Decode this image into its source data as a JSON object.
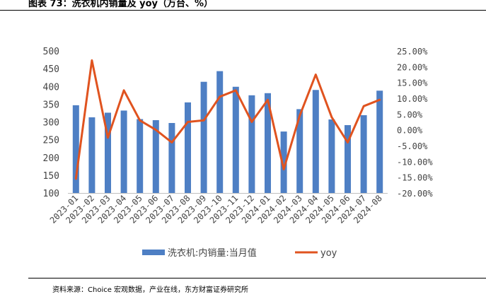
{
  "figure": {
    "title": "图表 73：洗衣机内销量及 yoy（万台、%）",
    "source": "资料来源：Choice 宏观数据，产业在线，东方财富证券研究所"
  },
  "chart_data": {
    "type": "bar",
    "categories": [
      "2023-01",
      "2023-02",
      "2023-03",
      "2023-04",
      "2023-05",
      "2023-06",
      "2023-07",
      "2023-08",
      "2023-09",
      "2023-10",
      "2023-11",
      "2023-12",
      "2024-01",
      "2024-02",
      "2024-03",
      "2024-04",
      "2024-05",
      "2024-06",
      "2024-07",
      "2024-08"
    ],
    "series": [
      {
        "name": "洗衣机:内销量:当月值",
        "type": "bar",
        "axis": "left",
        "color": "#4e7fc4",
        "values": [
          347,
          313,
          326,
          332,
          308,
          305,
          297,
          355,
          413,
          443,
          399,
          375,
          381,
          273,
          336,
          390,
          307,
          291,
          319,
          388
        ]
      },
      {
        "name": "yoy",
        "type": "line",
        "axis": "right",
        "color": "#e0531f",
        "values": [
          -15.5,
          22.0,
          -2.5,
          12.5,
          3.0,
          0.0,
          -4.0,
          2.5,
          3.0,
          10.5,
          12.5,
          2.5,
          9.5,
          -12.5,
          4.5,
          17.5,
          4.0,
          -4.0,
          7.5,
          9.5
        ]
      }
    ],
    "left_axis": {
      "ylim": [
        100,
        500
      ],
      "ticks": [
        "100",
        "150",
        "200",
        "250",
        "300",
        "350",
        "400",
        "450",
        "500"
      ]
    },
    "right_axis": {
      "ylim": [
        -20,
        25
      ],
      "ticks": [
        "-20.00%",
        "-15.00%",
        "-10.00%",
        "-5.00%",
        "0.00%",
        "5.00%",
        "10.00%",
        "15.00%",
        "20.00%",
        "25.00%"
      ]
    },
    "legend": {
      "position": "bottom"
    },
    "grid": false
  }
}
